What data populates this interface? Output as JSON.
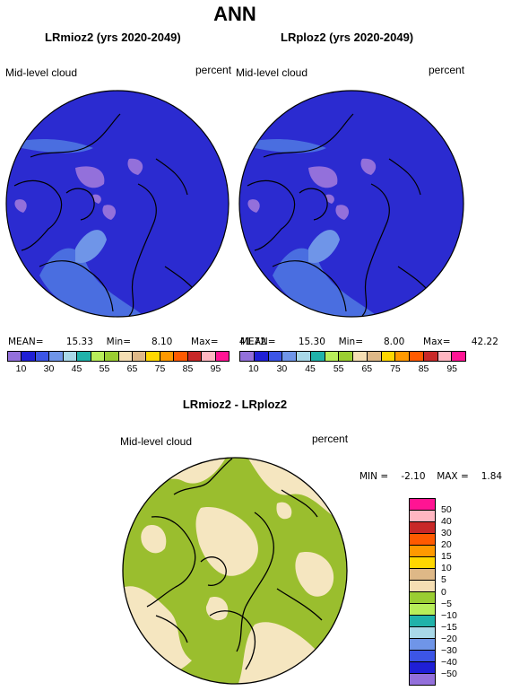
{
  "main_title": "ANN",
  "panel_left": {
    "title": "LRmioz2 (yrs 2020-2049)",
    "variable": "Mid-level cloud",
    "units": "percent",
    "mean_label": "MEAN=",
    "mean": "15.33",
    "min_label": "Min=",
    "min": "8.10",
    "max_label": "Max=",
    "max": "41.72"
  },
  "panel_right": {
    "title": "LRploz2 (yrs 2020-2049)",
    "variable": "Mid-level cloud",
    "units": "percent",
    "mean_label": "MEAN=",
    "mean": "15.30",
    "min_label": "Min=",
    "min": "8.00",
    "max_label": "Max=",
    "max": "42.22"
  },
  "colorbar_abs": {
    "colors": [
      "#9370db",
      "#1f1fd6",
      "#3c55e6",
      "#6f95e8",
      "#a8d8e8",
      "#20b2aa",
      "#b8ee5a",
      "#9acd32",
      "#f5deb3",
      "#deb887",
      "#ffd700",
      "#ff9900",
      "#ff5a00",
      "#c82828",
      "#ffb6c1",
      "#ff1493"
    ],
    "tick_labels": [
      "10",
      "30",
      "45",
      "55",
      "65",
      "75",
      "85",
      "95"
    ],
    "tick_labels_left": [
      "10",
      "30"
    ]
  },
  "diff_panel": {
    "title": "LRmioz2 - LRploz2",
    "variable": "Mid-level cloud",
    "units": "percent",
    "min_label": "MIN =",
    "min": "-2.10",
    "max_label": "MAX =",
    "max": "1.84"
  },
  "colorbar_diff": {
    "colors_top_to_bottom": [
      "#ff1493",
      "#ffb6c1",
      "#c82828",
      "#ff5a00",
      "#ff9900",
      "#ffd700",
      "#deb887",
      "#f5deb3",
      "#9acd32",
      "#b8ee5a",
      "#20b2aa",
      "#a8d8e8",
      "#6f95e8",
      "#3c55e6",
      "#1f1fd6",
      "#9370db"
    ],
    "tick_labels_top_to_bottom": [
      "50",
      "40",
      "30",
      "20",
      "15",
      "10",
      "5",
      "0",
      "−5",
      "−10",
      "−15",
      "−20",
      "−30",
      "−40",
      "−50"
    ]
  },
  "map_colors": {
    "abs_background": "#2b2bd0",
    "abs_light": "#4a6ee0",
    "abs_lighter": "#6f95e8",
    "abs_purple": "#9370db",
    "diff_green": "#9abe2e",
    "diff_tan": "#f5e6c0"
  }
}
